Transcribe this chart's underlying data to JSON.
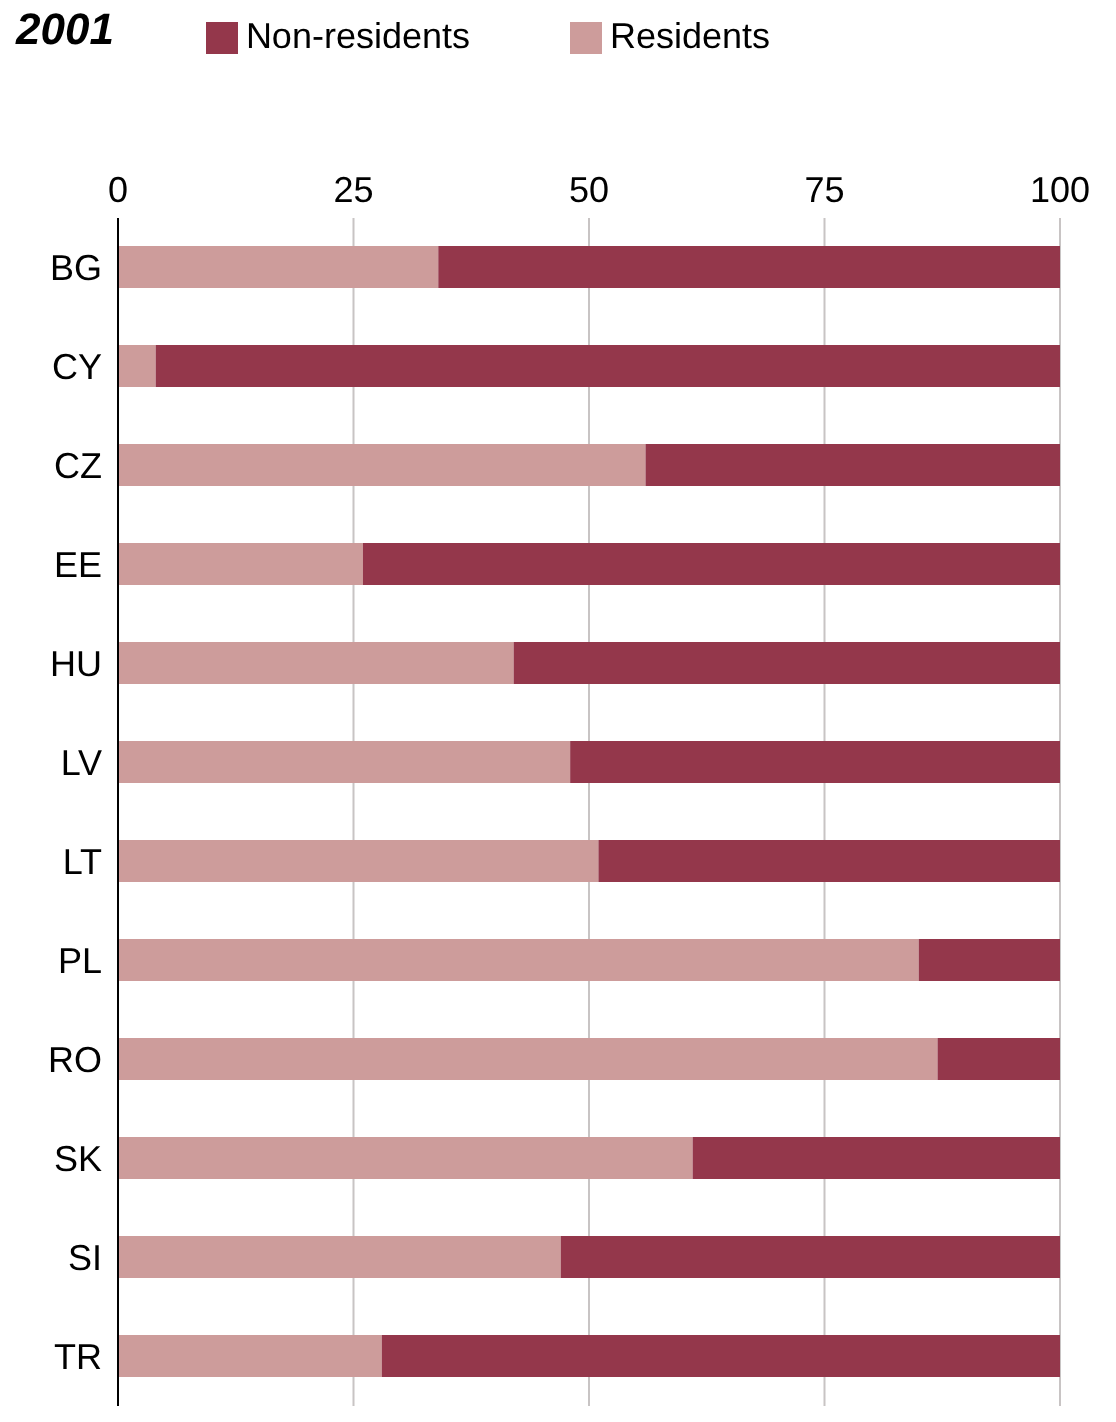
{
  "chart_data": {
    "type": "bar",
    "orientation": "horizontal",
    "stacked": true,
    "title": "2001",
    "categories": [
      "BG",
      "CY",
      "CZ",
      "EE",
      "HU",
      "LV",
      "LT",
      "PL",
      "RO",
      "SK",
      "SI",
      "TR"
    ],
    "series": [
      {
        "name": "Residents",
        "color": "#cd9c9b",
        "values": [
          34,
          4,
          56,
          26,
          42,
          48,
          51,
          85,
          87,
          61,
          47,
          28
        ]
      },
      {
        "name": "Non-residents",
        "color": "#94374b",
        "values": [
          66,
          96,
          44,
          74,
          58,
          52,
          49,
          15,
          13,
          39,
          53,
          72
        ]
      }
    ],
    "xlim": [
      0,
      100
    ],
    "xticks": [
      0,
      25,
      50,
      75,
      100
    ],
    "grid": "x",
    "legend": "top"
  }
}
